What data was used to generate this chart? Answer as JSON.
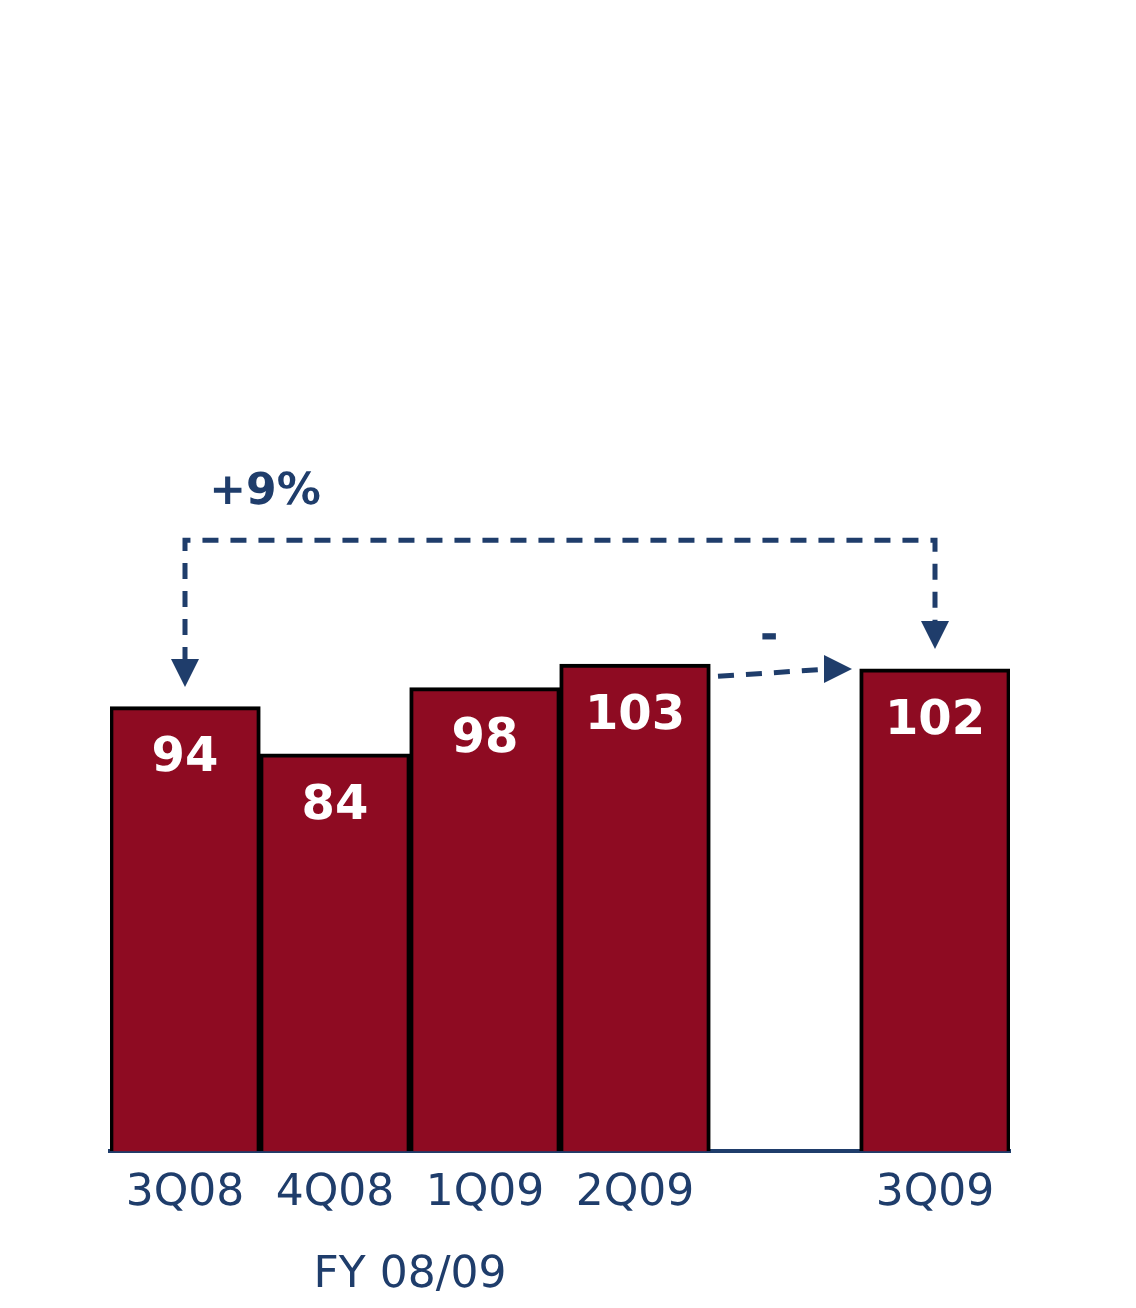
{
  "chart_data": {
    "type": "bar",
    "categories": [
      "3Q08",
      "4Q08",
      "1Q09",
      "2Q09",
      null,
      "3Q09"
    ],
    "values": [
      94,
      84,
      98,
      103,
      null,
      102
    ],
    "color": "#8e0b22",
    "data_labels": true,
    "annotations": [
      "+9%",
      "-",
      "FY 08/09"
    ]
  }
}
